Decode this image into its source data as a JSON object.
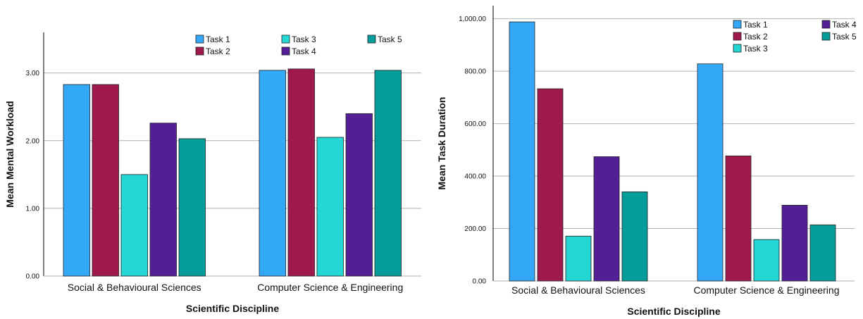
{
  "colors": {
    "Task 1": "#33a8f7",
    "Task 2": "#a0194d",
    "Task 3": "#24d6d4",
    "Task 4": "#541f96",
    "Task 5": "#059c99"
  },
  "chart_data": [
    {
      "type": "bar",
      "xlabel": "Scientific Discipline",
      "ylabel": "Mean Mental Workload",
      "ylim": [
        0,
        3.6
      ],
      "yticks": [
        "0.00",
        "1.00",
        "2.00",
        "3.00"
      ],
      "ytick_values": [
        0,
        1,
        2,
        3
      ],
      "grid": true,
      "legend_position": "top-right",
      "categories": [
        "Social & Behavioural Sciences",
        "Computer Science & Engineering"
      ],
      "series": [
        {
          "name": "Task 1",
          "values": [
            2.83,
            3.04
          ]
        },
        {
          "name": "Task 2",
          "values": [
            2.83,
            3.06
          ]
        },
        {
          "name": "Task 3",
          "values": [
            1.5,
            2.05
          ]
        },
        {
          "name": "Task 4",
          "values": [
            2.26,
            2.4
          ]
        },
        {
          "name": "Task 5",
          "values": [
            2.03,
            3.04
          ]
        }
      ]
    },
    {
      "type": "bar",
      "xlabel": "Scientific Discipline",
      "ylabel": "Mean Task Duration",
      "ylim": [
        0,
        1050
      ],
      "yticks": [
        "0.00",
        "200.00",
        "400.00",
        "600.00",
        "800.00",
        "1,000.00"
      ],
      "ytick_values": [
        0,
        200,
        400,
        600,
        800,
        1000
      ],
      "grid": true,
      "legend_position": "top-right",
      "categories": [
        "Social & Behavioural Sciences",
        "Computer Science & Engineering"
      ],
      "series": [
        {
          "name": "Task 1",
          "values": [
            988,
            828
          ]
        },
        {
          "name": "Task 2",
          "values": [
            733,
            477
          ]
        },
        {
          "name": "Task 3",
          "values": [
            171,
            158
          ]
        },
        {
          "name": "Task 4",
          "values": [
            474,
            289
          ]
        },
        {
          "name": "Task 5",
          "values": [
            340,
            214
          ]
        }
      ]
    }
  ]
}
